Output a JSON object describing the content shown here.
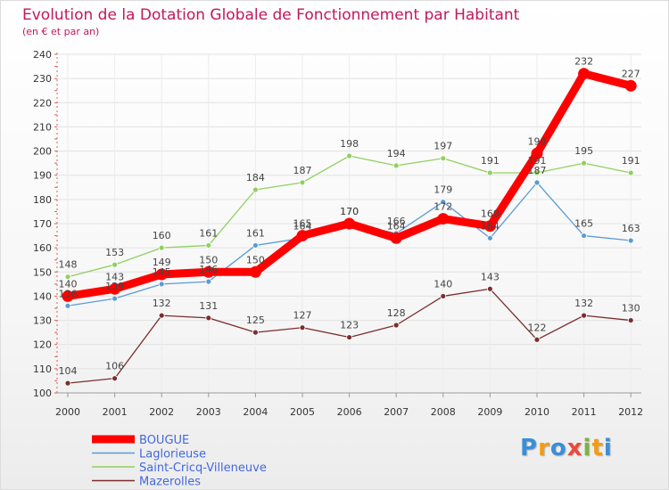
{
  "chart_data": {
    "type": "line",
    "title": "Evolution de la Dotation Globale de Fonctionnement par Habitant",
    "subtitle": "(en € et par an)",
    "xlabel": "",
    "ylabel": "",
    "ylim": [
      100,
      240
    ],
    "yticks": [
      100,
      110,
      120,
      130,
      140,
      150,
      160,
      170,
      180,
      190,
      200,
      210,
      220,
      230,
      240
    ],
    "categories": [
      "2000",
      "2001",
      "2002",
      "2003",
      "2004",
      "2005",
      "2006",
      "2007",
      "2008",
      "2009",
      "2010",
      "2011",
      "2012"
    ],
    "grid": true,
    "legend_position": "bottom-left",
    "series": [
      {
        "name": "BOUGUE",
        "color": "#ff0000",
        "values": [
          140,
          143,
          149,
          150,
          150,
          165,
          170,
          164,
          172,
          169,
          199,
          232,
          227
        ],
        "labels": [
          "140",
          "143",
          "149",
          "150",
          "150",
          "165",
          "170",
          "164",
          "172",
          "169",
          "199",
          "232",
          "227"
        ]
      },
      {
        "name": "Laglorieuse",
        "color": "#5b9bd5",
        "values": [
          136,
          139,
          145,
          146,
          161,
          164,
          170,
          166,
          179,
          164,
          187,
          165,
          163
        ],
        "labels": [
          "136",
          "139",
          "145",
          "146",
          "161",
          "164",
          "170",
          "166",
          "179",
          "164",
          "187",
          "165",
          "163"
        ]
      },
      {
        "name": "Saint-Cricq-Villeneuve",
        "color": "#90d060",
        "values": [
          148,
          153,
          160,
          161,
          184,
          187,
          198,
          194,
          197,
          191,
          191,
          195,
          191
        ],
        "labels": [
          "148",
          "153",
          "160",
          "161",
          "184",
          "187",
          "198",
          "194",
          "197",
          "191",
          "191",
          "195",
          "191"
        ]
      },
      {
        "name": "Mazerolles",
        "color": "#7b2d2d",
        "values": [
          104,
          106,
          132,
          131,
          125,
          127,
          123,
          128,
          140,
          143,
          122,
          132,
          130
        ],
        "labels": [
          "104",
          "106",
          "132",
          "131",
          "125",
          "127",
          "123",
          "128",
          "140",
          "143",
          "122",
          "132",
          "130"
        ]
      }
    ]
  },
  "logo": {
    "letters": [
      "P",
      "r",
      "o",
      "x",
      "i",
      "t",
      "i"
    ],
    "colors": [
      "#3b8fd6",
      "#f39c12",
      "#3b8fd6",
      "#e74c3c",
      "#7cb342",
      "#f39c12",
      "#3b8fd6"
    ]
  }
}
